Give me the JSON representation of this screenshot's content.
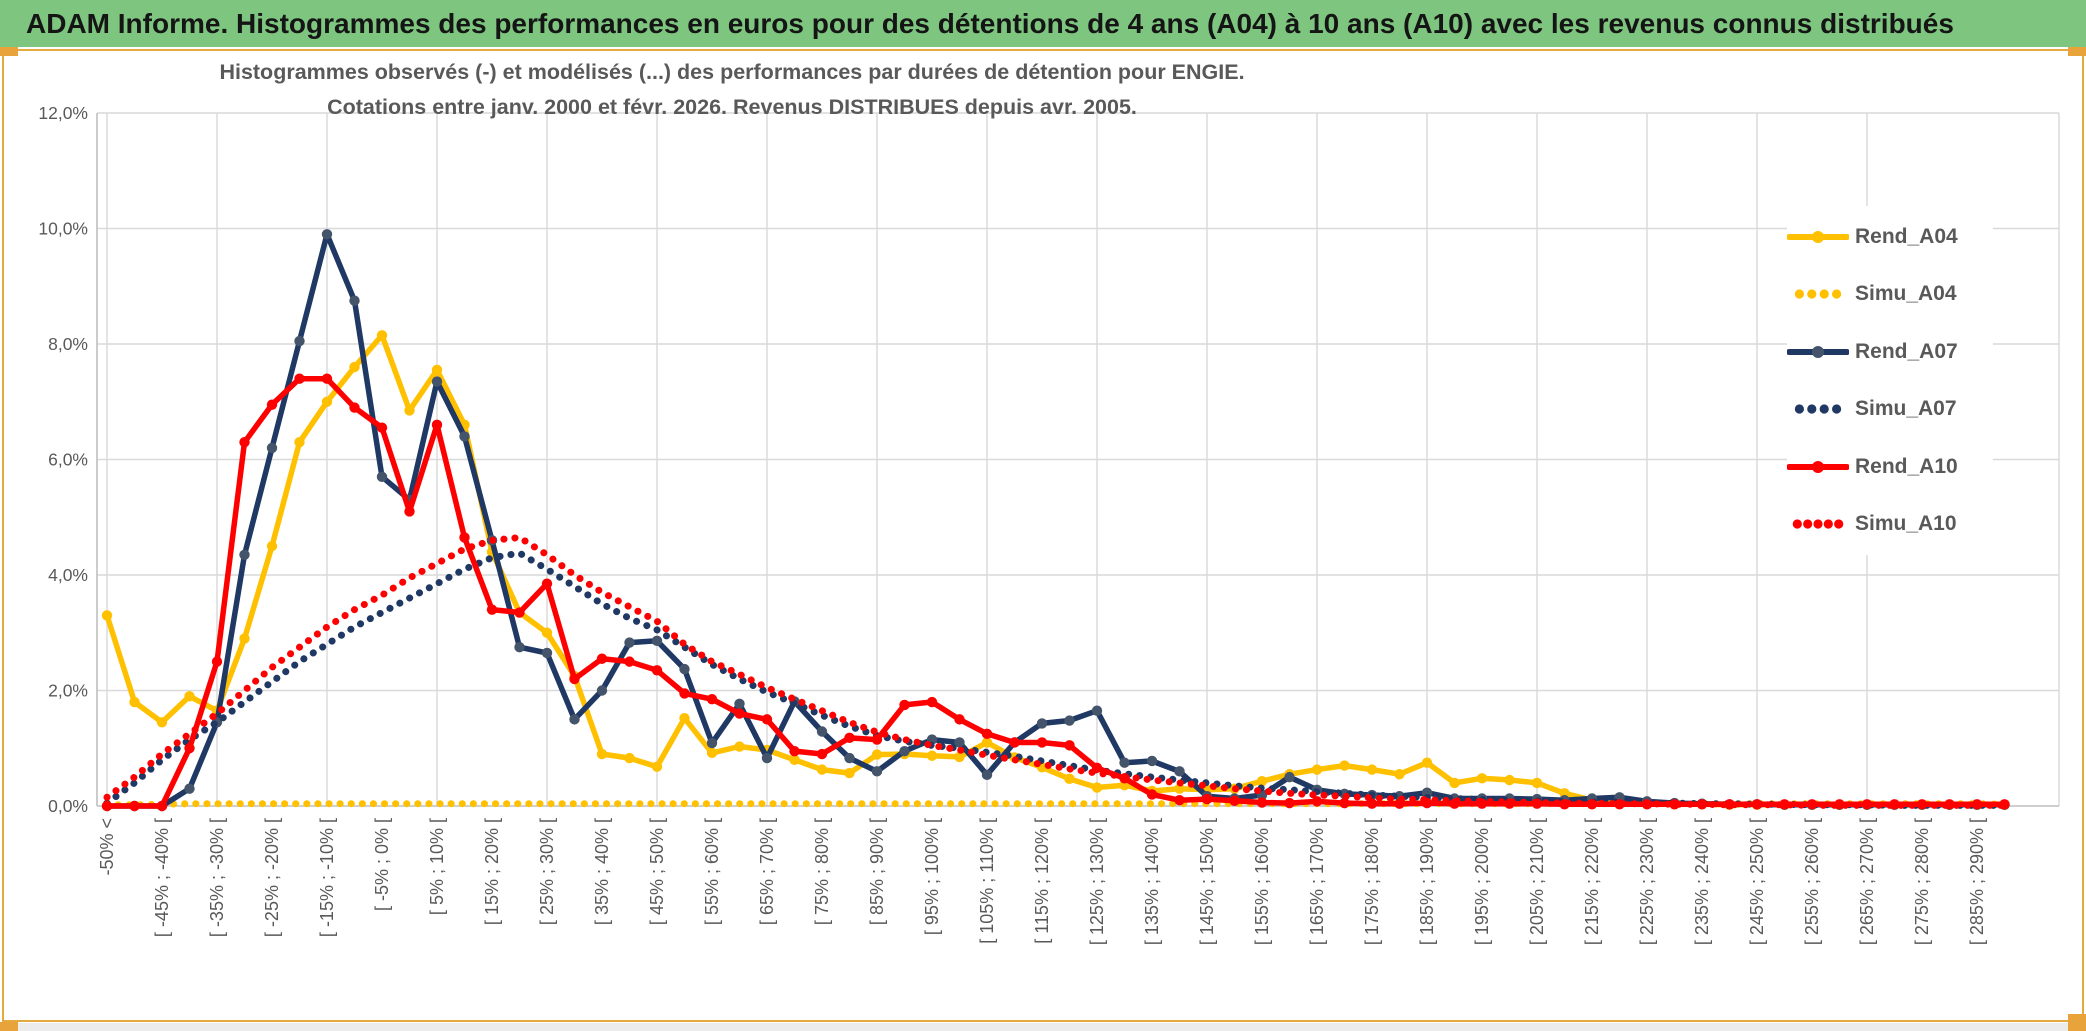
{
  "header": {
    "title": "ADAM Informe. Histogrammes des performances en euros pour des détentions de 4 ans (A04) à 10 ans (A10) avec les revenus connus distribués"
  },
  "colors": {
    "header_bg": "#7EC67F",
    "frame_gold": "#E8A33B",
    "grid": "#D9D9D9",
    "axis": "#BFBFBF",
    "text_gray": "#595959",
    "gold": "#FFC000",
    "navy": "#1F3864",
    "navy_marker": "#44546A",
    "red": "#FF0000"
  },
  "chart_data": {
    "type": "line",
    "title": "Histogrammes observés (-) et modélisés (...) des performances par durées de détention pour ENGIE.",
    "subtitle": "Cotations entre janv. 2000 et févr. 2026. Revenus DISTRIBUES depuis avr. 2005.",
    "xlabel": "",
    "ylabel": "",
    "ylim": [
      0,
      12
    ],
    "grid": true,
    "legend_position": "upper-right-inside",
    "y_tick_labels": [
      "12,0%",
      "10,0%",
      "8,0%",
      "6,0%",
      "4,0%",
      "2,0%",
      "0,0%"
    ],
    "x_label_step": 2,
    "n_points": 70,
    "x_tick_labels": [
      "-50% <",
      "[ -45% ; -40% [",
      "[ -35% ; -30% [",
      "[ -25% ; -20% [",
      "[ -15% ; -10% [",
      "[ -5% ; 0% [",
      "[ 5% ; 10% [",
      "[ 15% ; 20% [",
      "[ 25% ; 30% [",
      "[ 35% ; 40% [",
      "[ 45% ; 50% [",
      "[ 55% ; 60% [",
      "[ 65% ; 70% [",
      "[ 75% ; 80% [",
      "[ 85% ; 90% [",
      "[ 95% ; 100% [",
      "[ 105% ; 110% [",
      "[ 115% ; 120% [",
      "[ 125% ; 130% [",
      "[ 135% ; 140% [",
      "[ 145% ; 150% [",
      "[ 155% ; 160% [",
      "[ 165% ; 170% [",
      "[ 175% ; 180% [",
      "[ 185% ; 190% [",
      "[ 195% ; 200% [",
      "[ 205% ; 210% [",
      "[ 215% ; 220% [",
      "[ 225% ; 230% [",
      "[ 235% ; 240% [",
      "[ 245% ; 250% [",
      "[ 255% ; 260% [",
      "[ 265% ; 270% [",
      "[ 275% ; 280% [",
      "[ 285% ; 290% ["
    ],
    "series": [
      {
        "name": "Rend_A04",
        "style": "solid",
        "color": "#FFC000",
        "marker_color": "#FFC000",
        "sample_dots": 0,
        "values": [
          3.3,
          1.8,
          1.45,
          1.9,
          1.65,
          2.9,
          4.5,
          6.3,
          7.0,
          7.6,
          8.15,
          6.85,
          7.55,
          6.6,
          4.4,
          3.35,
          3.0,
          2.25,
          0.9,
          0.83,
          0.68,
          1.52,
          0.92,
          1.03,
          0.97,
          0.8,
          0.63,
          0.57,
          0.89,
          0.9,
          0.87,
          0.85,
          1.1,
          0.84,
          0.67,
          0.47,
          0.32,
          0.36,
          0.26,
          0.3,
          0.28,
          0.3,
          0.43,
          0.55,
          0.63,
          0.7,
          0.63,
          0.55,
          0.75,
          0.4,
          0.48,
          0.45,
          0.4,
          0.22,
          0.1,
          0.05,
          0.04,
          0.03,
          0.03,
          0.02,
          0.02,
          0.02,
          0.02,
          0.02,
          0.02,
          0.02,
          0.02,
          0.02,
          0.02,
          0.02
        ]
      },
      {
        "name": "Simu_A04",
        "style": "dotted",
        "color": "#FFC000",
        "sample_dots": 4,
        "values": [
          0.02,
          0.02,
          0.03,
          0.04,
          0.04,
          0.04,
          0.04,
          0.04,
          0.04,
          0.04,
          0.04,
          0.04,
          0.04,
          0.04,
          0.04,
          0.04,
          0.04,
          0.04,
          0.04,
          0.04,
          0.04,
          0.04,
          0.04,
          0.04,
          0.04,
          0.04,
          0.04,
          0.04,
          0.04,
          0.04,
          0.04,
          0.04,
          0.04,
          0.04,
          0.04,
          0.04,
          0.04,
          0.04,
          0.04,
          0.04,
          0.04,
          0.04,
          0.04,
          0.04,
          0.04,
          0.04,
          0.04,
          0.04,
          0.04,
          0.04,
          0.04,
          0.04,
          0.04,
          0.04,
          0.04,
          0.04,
          0.04,
          0.04,
          0.04,
          0.04,
          0.04,
          0.04,
          0.04,
          0.04,
          0.04,
          0.04,
          0.04,
          0.04,
          0.04,
          0.03
        ]
      },
      {
        "name": "Rend_A07",
        "style": "solid",
        "color": "#1F3864",
        "marker_color": "#44546A",
        "sample_dots": 0,
        "values": [
          0,
          0,
          0,
          0.3,
          1.45,
          4.35,
          6.2,
          8.05,
          9.9,
          8.75,
          5.7,
          5.3,
          7.35,
          6.4,
          4.6,
          2.75,
          2.65,
          1.5,
          2.0,
          2.83,
          2.86,
          2.37,
          1.09,
          1.77,
          0.83,
          1.81,
          1.29,
          0.83,
          0.6,
          0.95,
          1.15,
          1.1,
          0.54,
          1.1,
          1.43,
          1.48,
          1.65,
          0.75,
          0.78,
          0.6,
          0.17,
          0.13,
          0.19,
          0.5,
          0.28,
          0.21,
          0.19,
          0.17,
          0.23,
          0.13,
          0.13,
          0.13,
          0.12,
          0.1,
          0.13,
          0.15,
          0.08,
          0.05,
          0.04,
          0.03,
          0.03,
          0.02,
          0.02,
          0.02,
          0.02,
          0.02,
          0.02,
          0.02,
          0.02,
          0.02
        ]
      },
      {
        "name": "Simu_A07",
        "style": "dotted",
        "color": "#1F3864",
        "sample_dots": 4,
        "values": [
          0.05,
          0.4,
          0.8,
          1.15,
          1.45,
          1.8,
          2.15,
          2.5,
          2.8,
          3.1,
          3.35,
          3.6,
          3.85,
          4.1,
          4.3,
          4.38,
          4.1,
          3.8,
          3.5,
          3.25,
          3.05,
          2.75,
          2.45,
          2.2,
          1.97,
          1.78,
          1.57,
          1.38,
          1.22,
          1.12,
          1.05,
          1.0,
          0.93,
          0.86,
          0.78,
          0.7,
          0.62,
          0.56,
          0.5,
          0.45,
          0.4,
          0.35,
          0.31,
          0.28,
          0.25,
          0.22,
          0.19,
          0.17,
          0.15,
          0.13,
          0.11,
          0.1,
          0.09,
          0.08,
          0.07,
          0.06,
          0.05,
          0.05,
          0.04,
          0.04,
          0.03,
          0.03,
          0.02,
          0.02,
          0.02,
          0.01,
          0.01,
          0.01,
          0.01,
          0.01
        ]
      },
      {
        "name": "Rend_A10",
        "style": "solid",
        "color": "#FF0000",
        "marker_color": "#FF0000",
        "sample_dots": 0,
        "values": [
          0,
          0,
          0,
          1.0,
          2.5,
          6.3,
          6.95,
          7.4,
          7.4,
          6.9,
          6.55,
          5.1,
          6.6,
          4.65,
          3.4,
          3.35,
          3.85,
          2.2,
          2.55,
          2.5,
          2.35,
          1.95,
          1.85,
          1.6,
          1.5,
          0.95,
          0.9,
          1.18,
          1.15,
          1.75,
          1.8,
          1.5,
          1.25,
          1.1,
          1.1,
          1.05,
          0.66,
          0.48,
          0.2,
          0.1,
          0.12,
          0.09,
          0.06,
          0.05,
          0.08,
          0.05,
          0.04,
          0.04,
          0.05,
          0.04,
          0.04,
          0.04,
          0.04,
          0.03,
          0.03,
          0.03,
          0.03,
          0.03,
          0.03,
          0.03,
          0.03,
          0.03,
          0.03,
          0.03,
          0.03,
          0.03,
          0.03,
          0.03,
          0.03,
          0.03
        ]
      },
      {
        "name": "Simu_A10",
        "style": "dotted",
        "color": "#FF0000",
        "sample_dots": 5,
        "values": [
          0.15,
          0.5,
          0.9,
          1.25,
          1.6,
          2.0,
          2.4,
          2.75,
          3.1,
          3.4,
          3.65,
          3.95,
          4.2,
          4.45,
          4.6,
          4.65,
          4.35,
          4.0,
          3.7,
          3.45,
          3.2,
          2.8,
          2.5,
          2.28,
          2.05,
          1.85,
          1.65,
          1.45,
          1.28,
          1.15,
          1.05,
          0.97,
          0.88,
          0.8,
          0.72,
          0.64,
          0.57,
          0.51,
          0.45,
          0.4,
          0.35,
          0.3,
          0.26,
          0.22,
          0.19,
          0.17,
          0.14,
          0.12,
          0.11,
          0.09,
          0.08,
          0.07,
          0.06,
          0.05,
          0.05,
          0.04,
          0.04,
          0.03,
          0.03,
          0.02,
          0.02,
          0.02,
          0.01,
          0.01,
          0.01,
          0.01,
          0.01,
          0.01,
          0.01,
          0.01
        ]
      }
    ]
  }
}
